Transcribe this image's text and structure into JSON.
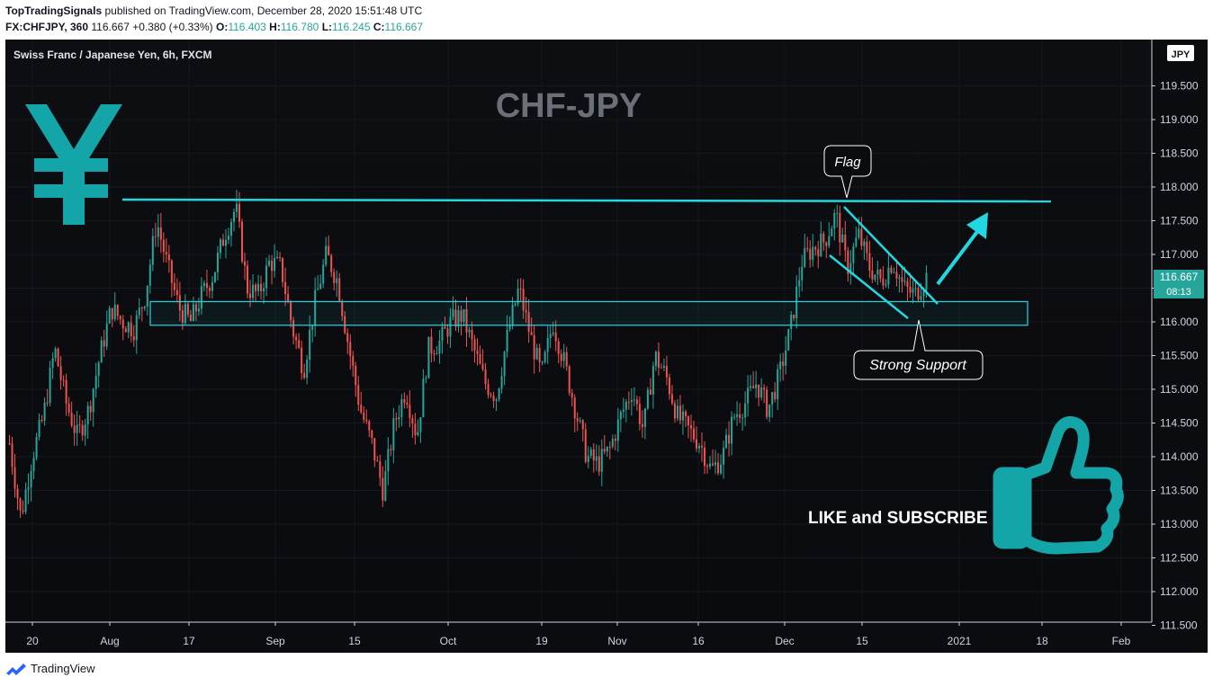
{
  "header": {
    "publisher": "TopTradingSignals",
    "published_text": "published on TradingView.com, December 28, 2020 15:51:48 UTC",
    "symbol": "FX:CHFJPY, 360",
    "last": "116.667",
    "change": "+0.380 (+0.33%)",
    "open_label": "O:",
    "open": "116.403",
    "high_label": "H:",
    "high": "116.780",
    "low_label": "L:",
    "low": "116.245",
    "close_label": "C:",
    "close": "116.667"
  },
  "chart_data": {
    "type": "candlestick",
    "title": "Swiss Franc / Japanese Yen, 6h, FXCM",
    "watermark": "CHF-JPY",
    "currency_badge": "JPY",
    "price_tag": "116.667",
    "countdown": "08:13",
    "y_ticks": [
      "119.500",
      "119.000",
      "118.500",
      "118.000",
      "117.500",
      "117.000",
      "116.500",
      "116.000",
      "115.500",
      "115.000",
      "114.500",
      "114.000",
      "113.500",
      "113.000",
      "112.500",
      "112.000",
      "111.500"
    ],
    "ylim": [
      111.45,
      120.2
    ],
    "x_ticks": [
      "20",
      "Aug",
      "17",
      "Sep",
      "15",
      "Oct",
      "19",
      "Nov",
      "16",
      "Dec",
      "15",
      "2021",
      "18",
      "Feb"
    ],
    "closes": [
      114.2,
      113.1,
      114.0,
      114.6,
      115.6,
      114.8,
      114.3,
      114.7,
      115.5,
      116.2,
      116.0,
      115.9,
      116.4,
      117.5,
      116.8,
      116.2,
      116.0,
      116.4,
      116.7,
      117.3,
      117.7,
      116.5,
      116.4,
      116.9,
      116.8,
      115.9,
      115.3,
      116.3,
      117.0,
      116.6,
      115.6,
      114.7,
      114.2,
      113.5,
      114.5,
      115.0,
      114.3,
      115.6,
      115.7,
      116.0,
      116.1,
      115.6,
      115.1,
      114.9,
      115.8,
      116.5,
      115.8,
      115.2,
      116.0,
      115.4,
      114.7,
      114.0,
      113.9,
      114.1,
      114.6,
      115.0,
      114.4,
      115.5,
      115.2,
      114.6,
      114.4,
      114.2,
      113.8,
      114.0,
      114.6,
      114.8,
      115.1,
      114.7,
      115.2,
      115.9,
      116.9,
      117.1,
      117.2,
      117.6,
      116.8,
      117.3,
      116.8,
      116.6,
      116.9,
      116.5,
      116.4,
      116.67
    ],
    "resistance_level": 117.8,
    "support_zone": [
      115.95,
      116.3
    ],
    "annotations": [
      "Flag",
      "Strong Support",
      "LIKE and SUBSCRIBE"
    ],
    "colors": {
      "bull": "#26a69a",
      "bear": "#ef5350",
      "level_line": "#22d8e0",
      "icon_teal": "#14a5a8",
      "watermark": "#6b6f78",
      "price_tag": "#26a69a"
    }
  },
  "footer": {
    "brand": "TradingView"
  }
}
